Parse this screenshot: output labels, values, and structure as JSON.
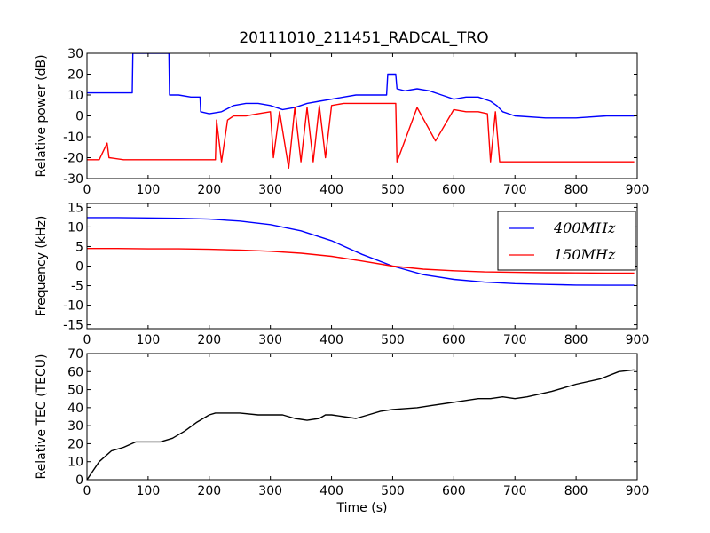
{
  "chart_data": [
    {
      "type": "line",
      "title": "20111010_211451_RADCAL_TRO",
      "xlabel": "",
      "ylabel": "Relative power (dB)",
      "xlim": [
        0,
        900
      ],
      "ylim": [
        -30,
        30
      ],
      "xticks": [
        0,
        100,
        200,
        300,
        400,
        500,
        600,
        700,
        800,
        900
      ],
      "yticks": [
        -30,
        -20,
        -10,
        0,
        10,
        20,
        30
      ],
      "grid": false,
      "legend": "none",
      "series": [
        {
          "color": "#0000ff",
          "x": [
            0,
            20,
            40,
            60,
            74,
            75,
            90,
            110,
            130,
            134,
            135,
            150,
            170,
            185,
            186,
            200,
            220,
            240,
            260,
            280,
            300,
            320,
            340,
            360,
            380,
            400,
            420,
            440,
            490,
            492,
            505,
            507,
            520,
            540,
            560,
            580,
            600,
            620,
            640,
            660,
            670,
            680,
            700,
            750,
            800,
            850,
            895
          ],
          "values": [
            11,
            11,
            11,
            11,
            11,
            30,
            30,
            30,
            30,
            30,
            10,
            10,
            9,
            9,
            2,
            1,
            2,
            5,
            6,
            6,
            5,
            3,
            4,
            6,
            7,
            8,
            9,
            10,
            10,
            20,
            20,
            13,
            12,
            13,
            12,
            10,
            8,
            9,
            9,
            7,
            5,
            2,
            0,
            -1,
            -1,
            0,
            0
          ]
        },
        {
          "color": "#ff0000",
          "x": [
            0,
            20,
            33,
            36,
            60,
            100,
            150,
            190,
            210,
            212,
            220,
            230,
            240,
            260,
            280,
            300,
            305,
            315,
            330,
            340,
            350,
            360,
            370,
            380,
            390,
            400,
            420,
            440,
            480,
            505,
            507,
            540,
            570,
            600,
            620,
            640,
            655,
            660,
            668,
            675,
            690,
            720,
            760,
            800,
            850,
            895
          ],
          "values": [
            -21,
            -21,
            -13,
            -20,
            -21,
            -21,
            -21,
            -21,
            -21,
            -2,
            -22,
            -2,
            0,
            0,
            1,
            2,
            -20,
            2,
            -25,
            4,
            -22,
            4,
            -22,
            5,
            -20,
            5,
            6,
            6,
            6,
            6,
            -22,
            4,
            -12,
            3,
            2,
            2,
            1,
            -22,
            2,
            -22,
            -22,
            -22,
            -22,
            -22,
            -22,
            -22
          ]
        }
      ]
    },
    {
      "type": "line",
      "title": "",
      "xlabel": "",
      "ylabel": "Frequency (kHz)",
      "xlim": [
        0,
        900
      ],
      "ylim": [
        -16,
        16
      ],
      "xticks": [
        0,
        100,
        200,
        300,
        400,
        500,
        600,
        700,
        800,
        900
      ],
      "yticks": [
        -15,
        -10,
        -5,
        0,
        5,
        10,
        15
      ],
      "grid": false,
      "legend": "top-right",
      "series": [
        {
          "name": "400MHz",
          "color": "#0000ff",
          "x": [
            0,
            50,
            100,
            150,
            200,
            250,
            300,
            350,
            400,
            450,
            500,
            550,
            600,
            650,
            700,
            750,
            800,
            850,
            895
          ],
          "values": [
            12.4,
            12.4,
            12.3,
            12.2,
            12.0,
            11.5,
            10.6,
            9.0,
            6.5,
            3.0,
            0.0,
            -2.2,
            -3.4,
            -4.1,
            -4.5,
            -4.7,
            -4.85,
            -4.9,
            -4.9
          ]
        },
        {
          "name": "150MHz",
          "color": "#ff0000",
          "x": [
            0,
            50,
            100,
            150,
            200,
            250,
            300,
            350,
            400,
            450,
            500,
            550,
            600,
            650,
            700,
            750,
            800,
            850,
            895
          ],
          "values": [
            4.5,
            4.5,
            4.4,
            4.4,
            4.3,
            4.1,
            3.8,
            3.3,
            2.5,
            1.3,
            0.0,
            -0.8,
            -1.2,
            -1.5,
            -1.6,
            -1.7,
            -1.75,
            -1.8,
            -1.8
          ]
        }
      ]
    },
    {
      "type": "line",
      "title": "",
      "xlabel": "Time (s)",
      "ylabel": "Relative TEC (TECU)",
      "xlim": [
        0,
        900
      ],
      "ylim": [
        0,
        70
      ],
      "xticks": [
        0,
        100,
        200,
        300,
        400,
        500,
        600,
        700,
        800,
        900
      ],
      "yticks": [
        0,
        10,
        20,
        30,
        40,
        50,
        60,
        70
      ],
      "grid": false,
      "legend": "none",
      "series": [
        {
          "color": "#000000",
          "x": [
            0,
            10,
            20,
            40,
            60,
            80,
            100,
            120,
            140,
            160,
            180,
            200,
            210,
            220,
            250,
            280,
            300,
            320,
            340,
            360,
            380,
            390,
            400,
            420,
            440,
            460,
            480,
            500,
            540,
            560,
            600,
            640,
            660,
            680,
            700,
            720,
            760,
            800,
            840,
            870,
            895
          ],
          "values": [
            0,
            5,
            10,
            16,
            18,
            21,
            21,
            21,
            23,
            27,
            32,
            36,
            37,
            37,
            37,
            36,
            36,
            36,
            34,
            33,
            34,
            36,
            36,
            35,
            34,
            36,
            38,
            39,
            40,
            41,
            43,
            45,
            45,
            46,
            45,
            46,
            49,
            53,
            56,
            60,
            61
          ]
        }
      ]
    }
  ]
}
